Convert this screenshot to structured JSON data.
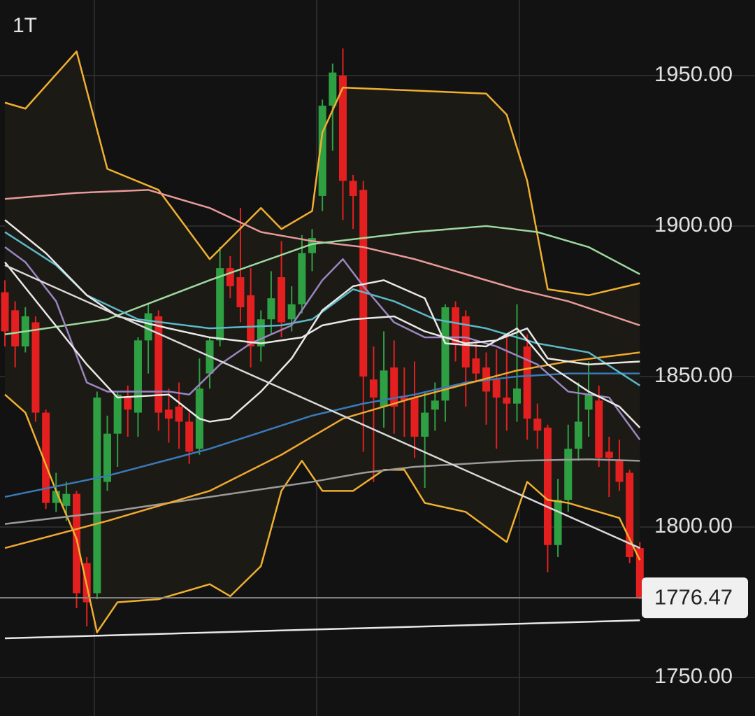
{
  "chart_data": {
    "type": "candlestick",
    "timeframe": "1T",
    "up_color": "#2ea043",
    "down_color": "#e3201f",
    "ylim": [
      1737.2,
      1975.1
    ],
    "yticks": [
      {
        "value": 1750,
        "label": "1750.00"
      },
      {
        "value": 1800,
        "label": "1800.00"
      },
      {
        "value": 1850,
        "label": "1850.00"
      },
      {
        "value": 1900,
        "label": "1900.00"
      },
      {
        "value": 1950,
        "label": "1950.00"
      }
    ],
    "grid": true,
    "open": [
      1878,
      1872,
      1860,
      1868,
      1838,
      1808,
      1807,
      1811,
      1788,
      1778,
      1815,
      1831,
      1843,
      1838,
      1862,
      1870,
      1839,
      1840,
      1835,
      1826,
      1851,
      1862,
      1886,
      1883,
      1877,
      1860,
      1869,
      1883,
      1869,
      1874,
      1891,
      1910,
      1940,
      1950,
      1915,
      1912,
      1849,
      1840,
      1853,
      1843,
      1843,
      1830,
      1839,
      1842,
      1873,
      1870,
      1856,
      1853,
      1849,
      1843,
      1841,
      1860,
      1836,
      1833,
      1794,
      1809,
      1826,
      1839,
      1842,
      1825,
      1822,
      1818,
      1793
    ],
    "high": [
      1882,
      1875,
      1873,
      1870,
      1839,
      1818,
      1815,
      1812,
      1790,
      1845,
      1837,
      1845,
      1847,
      1863,
      1874,
      1872,
      1846,
      1848,
      1838,
      1856,
      1863,
      1893,
      1890,
      1906,
      1886,
      1872,
      1885,
      1895,
      1880,
      1897,
      1899,
      1942,
      1954,
      1959,
      1917,
      1915,
      1860,
      1865,
      1862,
      1853,
      1855,
      1845,
      1848,
      1874,
      1875,
      1872,
      1862,
      1858,
      1859,
      1863,
      1874,
      1864,
      1841,
      1834,
      1816,
      1834,
      1848,
      1855,
      1847,
      1830,
      1829,
      1819,
      1795
    ],
    "low": [
      1860,
      1853,
      1858,
      1835,
      1806,
      1805,
      1802,
      1773,
      1767,
      1776,
      1812,
      1820,
      1830,
      1830,
      1851,
      1832,
      1828,
      1826,
      1821,
      1824,
      1846,
      1860,
      1876,
      1868,
      1853,
      1855,
      1864,
      1863,
      1865,
      1871,
      1885,
      1905,
      1925,
      1902,
      1899,
      1825,
      1815,
      1833,
      1831,
      1830,
      1823,
      1813,
      1832,
      1835,
      1855,
      1840,
      1848,
      1834,
      1826,
      1832,
      1835,
      1829,
      1826,
      1785,
      1790,
      1805,
      1822,
      1830,
      1820,
      1810,
      1812,
      1788,
      1776
    ],
    "close": [
      1865,
      1860,
      1870,
      1838,
      1808,
      1812,
      1811,
      1778,
      1775,
      1843,
      1831,
      1844,
      1839,
      1862,
      1871,
      1838,
      1836,
      1835,
      1825,
      1846,
      1862,
      1886,
      1880,
      1873,
      1860,
      1869,
      1876,
      1868,
      1874,
      1891,
      1896,
      1940,
      1951,
      1915,
      1910,
      1850,
      1843,
      1852,
      1840,
      1842,
      1830,
      1838,
      1842,
      1873,
      1861,
      1853,
      1851,
      1845,
      1843,
      1841,
      1846,
      1836,
      1832,
      1794,
      1809,
      1826,
      1835,
      1844,
      1823,
      1823,
      1815,
      1790,
      1776.47
    ],
    "band_fill": "#1c1a15",
    "overlays": [
      {
        "color": "#f0b030",
        "x": [
          0,
          2,
          7,
          10,
          15,
          20,
          25,
          27,
          30,
          31,
          33,
          40,
          47,
          49,
          51,
          53,
          57,
          62
        ],
        "values": [
          1941,
          1939,
          1958,
          1919,
          1912,
          1889,
          1906,
          1899,
          1905,
          1931,
          1946,
          1945,
          1944,
          1937,
          1915,
          1879,
          1877,
          1881
        ]
      },
      {
        "color": "#f0b030",
        "x": [
          0,
          2,
          5,
          7,
          9,
          11,
          15,
          20,
          22,
          25,
          27,
          29,
          31,
          34,
          37,
          39,
          41,
          45,
          49,
          51,
          53,
          55,
          60,
          62
        ],
        "values": [
          1844,
          1838,
          1812,
          1796,
          1765,
          1775,
          1776,
          1781,
          1777,
          1787,
          1812,
          1822,
          1812,
          1812,
          1819,
          1819,
          1808,
          1805,
          1795,
          1815,
          1809,
          1808,
          1803,
          1789
        ]
      },
      {
        "color": "#e89a9a",
        "x": [
          0,
          7,
          14,
          20,
          25,
          30,
          35,
          40,
          45,
          50,
          55,
          62
        ],
        "values": [
          1909,
          1911,
          1912,
          1906,
          1898,
          1895,
          1893,
          1889,
          1884,
          1879,
          1875,
          1867
        ]
      },
      {
        "color": "#9ed8a0",
        "x": [
          0,
          10,
          20,
          30,
          40,
          47,
          52,
          57,
          62
        ],
        "values": [
          1864,
          1869,
          1882,
          1894,
          1898,
          1900,
          1898,
          1893,
          1884
        ]
      },
      {
        "color": "#3a7ab8",
        "x": [
          0,
          10,
          20,
          30,
          35,
          40,
          45,
          50,
          55,
          62
        ],
        "values": [
          1810,
          1817,
          1826,
          1837,
          1841,
          1844,
          1848,
          1850,
          1851,
          1851
        ]
      },
      {
        "color": "#9a9a9a",
        "x": [
          0,
          10,
          20,
          30,
          35,
          40,
          50,
          57,
          62
        ],
        "values": [
          1801,
          1805,
          1810,
          1815,
          1818,
          1820,
          1822,
          1822.5,
          1822
        ]
      },
      {
        "color": "#f0a830",
        "x": [
          0,
          10,
          20,
          27,
          33,
          40,
          50,
          55,
          62
        ],
        "values": [
          1793,
          1802,
          1812,
          1824,
          1836,
          1843,
          1852,
          1855,
          1858
        ]
      },
      {
        "color": "#5bb8c8",
        "x": [
          0,
          5,
          8,
          13,
          20,
          27,
          30,
          34,
          38,
          42,
          47,
          52,
          57,
          62
        ],
        "values": [
          1898,
          1887,
          1877,
          1869,
          1866,
          1867,
          1869,
          1879,
          1875,
          1869,
          1866,
          1861,
          1858,
          1847
        ]
      },
      {
        "color": "#9a86c0",
        "x": [
          0,
          2,
          5,
          8,
          10,
          16,
          18,
          21,
          24,
          28,
          31,
          33,
          35,
          38,
          41,
          45,
          48,
          52,
          55,
          59,
          62
        ],
        "values": [
          1893,
          1888,
          1875,
          1848,
          1845,
          1845,
          1844,
          1854,
          1861,
          1867,
          1882,
          1889,
          1880,
          1868,
          1863,
          1863,
          1860,
          1854,
          1845,
          1843,
          1829
        ]
      },
      {
        "color": "#e8e8e8",
        "x": [
          0,
          4,
          8,
          11,
          16,
          20,
          25,
          29,
          31,
          34,
          38,
          41,
          45,
          48,
          51,
          53,
          57,
          62
        ],
        "values": [
          1902,
          1891,
          1877,
          1870,
          1866,
          1863,
          1861,
          1863,
          1867,
          1869,
          1870,
          1865,
          1861,
          1862,
          1866,
          1856,
          1854,
          1855
        ]
      },
      {
        "color": "#e8e8e8",
        "x": [
          0,
          8,
          11,
          16,
          19,
          20,
          22,
          25,
          28,
          31,
          34,
          37,
          41,
          43,
          47,
          50,
          53,
          57,
          60,
          62
        ],
        "values": [
          1888,
          1854,
          1843,
          1844,
          1836,
          1835,
          1836,
          1845,
          1856,
          1872,
          1880,
          1882,
          1876,
          1861,
          1860,
          1866,
          1854,
          1845,
          1840,
          1833
        ]
      },
      {
        "color": "#d8d8d8",
        "x": [
          0,
          62
        ],
        "values": [
          1887,
          1793
        ]
      },
      {
        "color": "#e8e8e8",
        "x": [
          0,
          62
        ],
        "values": [
          1763,
          1769
        ]
      }
    ]
  }
}
